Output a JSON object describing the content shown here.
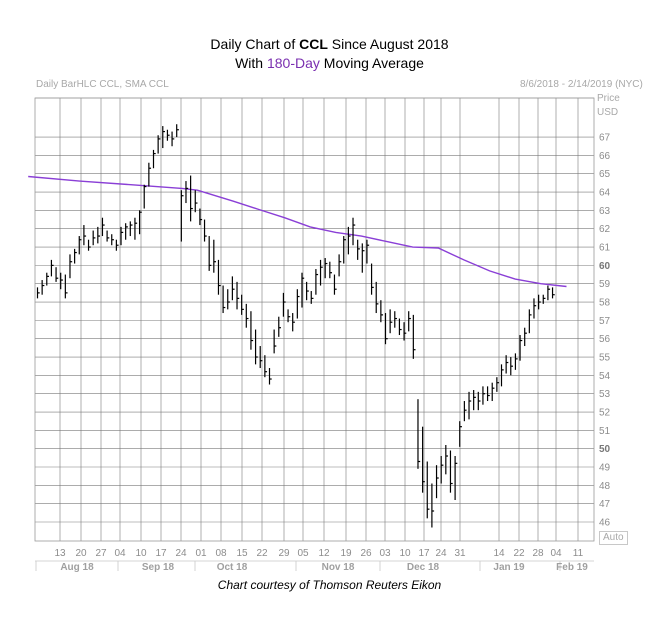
{
  "title": {
    "line1_pre": "Daily Chart of ",
    "line1_bold": "CCL",
    "line1_post": " Since August 2018",
    "line2_pre": "With ",
    "line2_colored": "180-Day",
    "line2_post": " Moving Average"
  },
  "header": {
    "left": "Daily BarHLC CCL, SMA CCL",
    "right": "8/6/2018 - 2/14/2019 (NYC)"
  },
  "price_label": [
    "Price",
    "USD"
  ],
  "auto_label": "Auto",
  "credit": "Chart courtesy of Thomson Reuters Eikon",
  "colors": {
    "bar": "#000000",
    "sma": "#8a3fd6",
    "grid": "#7a7a7a",
    "title_accent": "#7a2fb0"
  },
  "chart_data": {
    "type": "bar",
    "subtype": "ohlc-hlc",
    "ylim": [
      45,
      68
    ],
    "y_ticks": [
      46,
      47,
      48,
      49,
      50,
      51,
      52,
      53,
      54,
      55,
      56,
      57,
      58,
      59,
      60,
      61,
      62,
      63,
      64,
      65,
      66,
      67
    ],
    "y_bold_ticks": [
      50,
      60
    ],
    "x_day_ticks": [
      "13",
      "20",
      "27",
      "04",
      "10",
      "17",
      "24",
      "01",
      "08",
      "15",
      "22",
      "29",
      "05",
      "12",
      "19",
      "26",
      "03",
      "10",
      "17",
      "24",
      "31",
      "14",
      "22",
      "28",
      "04",
      "11"
    ],
    "x_month_ticks": [
      "Aug 18",
      "Sep 18",
      "Oct 18",
      "Nov 18",
      "Dec 18",
      "Jan 19",
      "Feb 19"
    ],
    "bars": [
      [
        58.2,
        58.8,
        58.5
      ],
      [
        58.4,
        59.2,
        58.9
      ],
      [
        58.9,
        59.6,
        59.4
      ],
      [
        59.4,
        60.3,
        60.0
      ],
      [
        59.1,
        59.9,
        59.3
      ],
      [
        58.7,
        59.6,
        59.2
      ],
      [
        58.2,
        59.5,
        58.5
      ],
      [
        59.3,
        60.6,
        60.2
      ],
      [
        60.1,
        60.9,
        60.7
      ],
      [
        60.6,
        61.6,
        61.4
      ],
      [
        61.1,
        62.2,
        61.6
      ],
      [
        60.8,
        61.4,
        61.0
      ],
      [
        61.1,
        61.9,
        61.5
      ],
      [
        61.2,
        62.1,
        61.6
      ],
      [
        61.6,
        62.6,
        62.2
      ],
      [
        61.3,
        61.9,
        61.5
      ],
      [
        61.1,
        61.7,
        61.4
      ],
      [
        60.8,
        61.4,
        61.1
      ],
      [
        61.1,
        62.1,
        61.8
      ],
      [
        61.4,
        62.3,
        62.1
      ],
      [
        61.6,
        62.4,
        62.2
      ],
      [
        61.4,
        62.6,
        62.3
      ],
      [
        61.7,
        63.0,
        62.9
      ],
      [
        63.1,
        64.4,
        64.3
      ],
      [
        64.3,
        65.6,
        65.3
      ],
      [
        65.3,
        66.3,
        66.1
      ],
      [
        66.1,
        67.1,
        66.9
      ],
      [
        66.4,
        67.6,
        67.3
      ],
      [
        66.8,
        67.4,
        67.1
      ],
      [
        66.5,
        67.3,
        66.9
      ],
      [
        67.0,
        67.7,
        67.4
      ],
      [
        61.3,
        64.1,
        63.8
      ],
      [
        63.4,
        64.6,
        64.2
      ],
      [
        62.4,
        64.9,
        63.1
      ],
      [
        62.9,
        64.1,
        63.4
      ],
      [
        62.2,
        63.1,
        62.5
      ],
      [
        61.3,
        62.5,
        61.6
      ],
      [
        59.7,
        61.6,
        60.0
      ],
      [
        59.6,
        61.4,
        60.2
      ],
      [
        58.4,
        60.3,
        58.9
      ],
      [
        57.4,
        58.9,
        57.7
      ],
      [
        57.6,
        58.7,
        58.0
      ],
      [
        58.1,
        59.4,
        58.7
      ],
      [
        57.6,
        59.1,
        58.2
      ],
      [
        57.3,
        58.4,
        57.6
      ],
      [
        56.6,
        57.9,
        57.1
      ],
      [
        55.4,
        57.5,
        55.9
      ],
      [
        54.6,
        56.5,
        55.0
      ],
      [
        54.4,
        55.6,
        54.8
      ],
      [
        53.9,
        55.1,
        54.2
      ],
      [
        53.5,
        54.4,
        53.8
      ],
      [
        55.2,
        56.5,
        55.6
      ],
      [
        56.1,
        57.2,
        56.6
      ],
      [
        57.2,
        58.5,
        58.0
      ],
      [
        56.9,
        57.6,
        57.2
      ],
      [
        56.4,
        57.4,
        56.9
      ],
      [
        57.1,
        58.7,
        58.3
      ],
      [
        57.7,
        59.6,
        59.3
      ],
      [
        58.1,
        59.1,
        58.6
      ],
      [
        57.9,
        58.6,
        58.2
      ],
      [
        58.4,
        59.8,
        59.5
      ],
      [
        58.9,
        60.3,
        59.9
      ],
      [
        59.3,
        60.4,
        60.1
      ],
      [
        59.3,
        60.2,
        59.6
      ],
      [
        58.4,
        59.5,
        58.7
      ],
      [
        59.4,
        60.6,
        60.2
      ],
      [
        60.1,
        61.6,
        61.4
      ],
      [
        60.6,
        62.1,
        61.6
      ],
      [
        61.1,
        62.6,
        62.2
      ],
      [
        60.3,
        61.4,
        60.9
      ],
      [
        59.6,
        61.2,
        60.8
      ],
      [
        60.1,
        61.4,
        61.1
      ],
      [
        58.4,
        60.1,
        58.8
      ],
      [
        57.4,
        59.1,
        57.9
      ],
      [
        56.9,
        58.1,
        57.3
      ],
      [
        55.7,
        57.4,
        56.0
      ],
      [
        56.3,
        57.6,
        56.9
      ],
      [
        56.6,
        57.5,
        57.1
      ],
      [
        56.2,
        57.1,
        56.5
      ],
      [
        55.9,
        56.9,
        56.3
      ],
      [
        56.4,
        57.5,
        57.1
      ],
      [
        54.9,
        57.3,
        55.4
      ],
      [
        48.9,
        52.7,
        49.3
      ],
      [
        47.6,
        51.2,
        48.2
      ],
      [
        46.2,
        49.3,
        46.7
      ],
      [
        45.7,
        48.1,
        46.6
      ],
      [
        47.3,
        49.1,
        48.4
      ],
      [
        48.1,
        49.6,
        49.1
      ],
      [
        48.6,
        50.2,
        49.6
      ],
      [
        47.6,
        49.9,
        48.1
      ],
      [
        47.2,
        49.6,
        49.2
      ],
      [
        50.1,
        51.5,
        51.2
      ],
      [
        51.5,
        52.6,
        52.1
      ],
      [
        51.6,
        53.1,
        52.6
      ],
      [
        52.1,
        53.2,
        52.8
      ],
      [
        52.1,
        53.1,
        52.6
      ],
      [
        52.4,
        53.4,
        53.0
      ],
      [
        52.6,
        53.4,
        52.9
      ],
      [
        52.6,
        53.6,
        53.3
      ],
      [
        53.1,
        53.9,
        53.6
      ],
      [
        53.4,
        54.6,
        54.3
      ],
      [
        54.1,
        55.1,
        54.7
      ],
      [
        54.0,
        55.0,
        54.5
      ],
      [
        54.3,
        55.2,
        54.9
      ],
      [
        54.8,
        56.2,
        55.9
      ],
      [
        55.6,
        56.6,
        56.3
      ],
      [
        56.3,
        57.6,
        57.3
      ],
      [
        57.1,
        58.2,
        57.8
      ],
      [
        57.6,
        58.4,
        58.0
      ],
      [
        57.9,
        58.4,
        58.2
      ],
      [
        58.1,
        58.9,
        58.7
      ],
      [
        58.2,
        58.8,
        58.4
      ]
    ],
    "sma_points": [
      [
        0,
        64.85
      ],
      [
        10,
        64.6
      ],
      [
        20,
        64.4
      ],
      [
        30,
        64.2
      ],
      [
        33,
        64.1
      ],
      [
        40,
        63.5
      ],
      [
        45,
        63.05
      ],
      [
        50,
        62.6
      ],
      [
        55,
        62.1
      ],
      [
        60,
        61.8
      ],
      [
        65,
        61.6
      ],
      [
        70,
        61.3
      ],
      [
        75,
        61.0
      ],
      [
        80,
        60.95
      ],
      [
        85,
        60.3
      ],
      [
        90,
        59.7
      ],
      [
        95,
        59.25
      ],
      [
        100,
        59.0
      ],
      [
        105,
        58.85
      ]
    ],
    "sma_start_index": -2,
    "sma_end_index": 114
  }
}
